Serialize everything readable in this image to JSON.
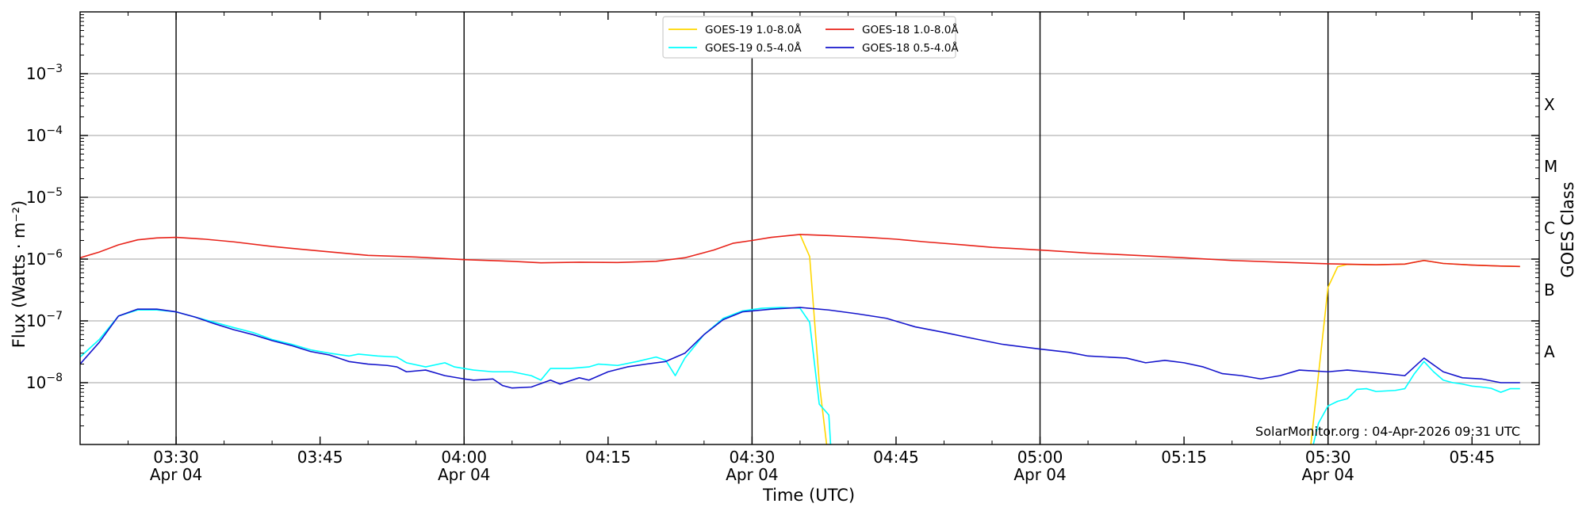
{
  "chart_data": {
    "type": "line",
    "title": "",
    "xlabel": "Time (UTC)",
    "ylabel": "Flux (Watts · m⁻²)",
    "y2label": "GOES Class",
    "yscale": "log",
    "xlim": [
      "03:20",
      "05:52"
    ],
    "ylim": [
      1e-09,
      0.01
    ],
    "grid": "horizontal",
    "legend_position": "top-center",
    "x_ticks": [
      {
        "time": "03:30",
        "label": "03:30",
        "sublabel": "Apr 04",
        "vline": true
      },
      {
        "time": "03:45",
        "label": "03:45",
        "sublabel": "",
        "vline": false
      },
      {
        "time": "04:00",
        "label": "04:00",
        "sublabel": "Apr 04",
        "vline": true
      },
      {
        "time": "04:15",
        "label": "04:15",
        "sublabel": "",
        "vline": false
      },
      {
        "time": "04:30",
        "label": "04:30",
        "sublabel": "Apr 04",
        "vline": true
      },
      {
        "time": "04:45",
        "label": "04:45",
        "sublabel": "",
        "vline": false
      },
      {
        "time": "05:00",
        "label": "05:00",
        "sublabel": "Apr 04",
        "vline": true
      },
      {
        "time": "05:15",
        "label": "05:15",
        "sublabel": "",
        "vline": false
      },
      {
        "time": "05:30",
        "label": "05:30",
        "sublabel": "Apr 04",
        "vline": true
      },
      {
        "time": "05:45",
        "label": "05:45",
        "sublabel": "",
        "vline": false
      }
    ],
    "y_ticks": [
      {
        "exp": -8,
        "label": "10"
      },
      {
        "exp": -7,
        "label": "10"
      },
      {
        "exp": -6,
        "label": "10"
      },
      {
        "exp": -5,
        "label": "10"
      },
      {
        "exp": -4,
        "label": "10"
      },
      {
        "exp": -3,
        "label": "10"
      }
    ],
    "goes_classes": [
      {
        "label": "A",
        "exp": -7.5
      },
      {
        "label": "B",
        "exp": -6.5
      },
      {
        "label": "C",
        "exp": -5.5
      },
      {
        "label": "M",
        "exp": -4.5
      },
      {
        "label": "X",
        "exp": -3.5
      }
    ],
    "series": [
      {
        "name": "GOES-19 1.0-8.0Å",
        "color": "#FFD700",
        "points": [
          [
            "04:35",
            2.5e-06
          ],
          [
            "04:36",
            1.1e-06
          ],
          [
            "04:37",
            1e-08
          ],
          [
            "04:38",
            5e-10
          ],
          [
            "05:28",
            5e-10
          ],
          [
            "05:30",
            3.5e-07
          ],
          [
            "05:31",
            7.5e-07
          ],
          [
            "05:32",
            8.2e-07
          ],
          [
            "05:35",
            8.1e-07
          ],
          [
            "05:38",
            8.3e-07
          ],
          [
            "05:40",
            9.5e-07
          ],
          [
            "05:42",
            8.5e-07
          ],
          [
            "05:45",
            8e-07
          ],
          [
            "05:48",
            7.7e-07
          ],
          [
            "05:50",
            7.6e-07
          ]
        ]
      },
      {
        "name": "GOES-19 0.5-4.0Å",
        "color": "#00FFFF",
        "points": [
          [
            "03:20",
            2.6e-08
          ],
          [
            "03:22",
            5e-08
          ],
          [
            "03:24",
            1.2e-07
          ],
          [
            "03:26",
            1.5e-07
          ],
          [
            "03:28",
            1.5e-07
          ],
          [
            "03:30",
            1.4e-07
          ],
          [
            "03:32",
            1.15e-07
          ],
          [
            "03:34",
            9.5e-08
          ],
          [
            "03:36",
            7.8e-08
          ],
          [
            "03:38",
            6.5e-08
          ],
          [
            "03:40",
            5e-08
          ],
          [
            "03:42",
            4.2e-08
          ],
          [
            "03:44",
            3.4e-08
          ],
          [
            "03:46",
            3e-08
          ],
          [
            "03:48",
            2.7e-08
          ],
          [
            "03:49",
            2.9e-08
          ],
          [
            "03:51",
            2.7e-08
          ],
          [
            "03:53",
            2.6e-08
          ],
          [
            "03:54",
            2.1e-08
          ],
          [
            "03:56",
            1.8e-08
          ],
          [
            "03:58",
            2.1e-08
          ],
          [
            "03:59",
            1.8e-08
          ],
          [
            "04:01",
            1.6e-08
          ],
          [
            "04:03",
            1.5e-08
          ],
          [
            "04:05",
            1.5e-08
          ],
          [
            "04:07",
            1.3e-08
          ],
          [
            "04:08",
            1.1e-08
          ],
          [
            "04:09",
            1.7e-08
          ],
          [
            "04:11",
            1.7e-08
          ],
          [
            "04:13",
            1.8e-08
          ],
          [
            "04:14",
            2e-08
          ],
          [
            "04:16",
            1.9e-08
          ],
          [
            "04:18",
            2.2e-08
          ],
          [
            "04:20",
            2.6e-08
          ],
          [
            "04:21",
            2.3e-08
          ],
          [
            "04:22",
            1.3e-08
          ],
          [
            "04:23",
            2.5e-08
          ],
          [
            "04:25",
            6e-08
          ],
          [
            "04:27",
            1.1e-07
          ],
          [
            "04:29",
            1.45e-07
          ],
          [
            "04:31",
            1.6e-07
          ],
          [
            "04:33",
            1.65e-07
          ],
          [
            "04:35",
            1.6e-07
          ],
          [
            "04:36",
            9.5e-08
          ],
          [
            "04:37",
            4.5e-09
          ],
          [
            "04:38",
            3e-09
          ],
          [
            "04:38.3",
            5e-10
          ],
          [
            "05:28",
            5e-10
          ],
          [
            "05:29",
            2.2e-09
          ],
          [
            "05:30",
            4.2e-09
          ],
          [
            "05:31",
            5e-09
          ],
          [
            "05:32",
            5.5e-09
          ],
          [
            "05:33",
            7.8e-09
          ],
          [
            "05:34",
            8e-09
          ],
          [
            "05:35",
            7.2e-09
          ],
          [
            "05:37",
            7.5e-09
          ],
          [
            "05:38",
            8e-09
          ],
          [
            "05:39",
            1.4e-08
          ],
          [
            "05:40",
            2.2e-08
          ],
          [
            "05:41",
            1.5e-08
          ],
          [
            "05:42",
            1.1e-08
          ],
          [
            "05:43",
            1e-08
          ],
          [
            "05:44",
            9.5e-09
          ],
          [
            "05:45",
            8.8e-09
          ],
          [
            "05:46",
            8.5e-09
          ],
          [
            "05:47",
            8.1e-09
          ],
          [
            "05:48",
            7e-09
          ],
          [
            "05:49",
            8e-09
          ],
          [
            "05:50",
            8e-09
          ]
        ]
      },
      {
        "name": "GOES-18 1.0-8.0Å",
        "color": "#E8231A",
        "points": [
          [
            "03:20",
            1.05e-06
          ],
          [
            "03:22",
            1.3e-06
          ],
          [
            "03:24",
            1.7e-06
          ],
          [
            "03:26",
            2.05e-06
          ],
          [
            "03:28",
            2.2e-06
          ],
          [
            "03:30",
            2.25e-06
          ],
          [
            "03:33",
            2.1e-06
          ],
          [
            "03:36",
            1.9e-06
          ],
          [
            "03:40",
            1.6e-06
          ],
          [
            "03:45",
            1.35e-06
          ],
          [
            "03:50",
            1.15e-06
          ],
          [
            "03:55",
            1.08e-06
          ],
          [
            "04:00",
            9.8e-07
          ],
          [
            "04:05",
            9.2e-07
          ],
          [
            "04:08",
            8.7e-07
          ],
          [
            "04:12",
            8.9e-07
          ],
          [
            "04:16",
            8.8e-07
          ],
          [
            "04:20",
            9.2e-07
          ],
          [
            "04:23",
            1.05e-06
          ],
          [
            "04:26",
            1.4e-06
          ],
          [
            "04:28",
            1.8e-06
          ],
          [
            "04:30",
            2e-06
          ],
          [
            "04:32",
            2.25e-06
          ],
          [
            "04:35",
            2.5e-06
          ],
          [
            "04:38",
            2.4e-06
          ],
          [
            "04:42",
            2.25e-06
          ],
          [
            "04:45",
            2.1e-06
          ],
          [
            "04:48",
            1.9e-06
          ],
          [
            "04:52",
            1.7e-06
          ],
          [
            "04:55",
            1.55e-06
          ],
          [
            "05:00",
            1.4e-06
          ],
          [
            "05:05",
            1.25e-06
          ],
          [
            "05:10",
            1.15e-06
          ],
          [
            "05:15",
            1.05e-06
          ],
          [
            "05:20",
            9.5e-07
          ],
          [
            "05:25",
            8.9e-07
          ],
          [
            "05:30",
            8.4e-07
          ],
          [
            "05:35",
            8.1e-07
          ],
          [
            "05:38",
            8.3e-07
          ],
          [
            "05:40",
            9.5e-07
          ],
          [
            "05:42",
            8.5e-07
          ],
          [
            "05:45",
            8e-07
          ],
          [
            "05:48",
            7.7e-07
          ],
          [
            "05:50",
            7.6e-07
          ]
        ]
      },
      {
        "name": "GOES-18 0.5-4.0Å",
        "color": "#1515CC",
        "points": [
          [
            "03:20",
            2e-08
          ],
          [
            "03:22",
            4.5e-08
          ],
          [
            "03:24",
            1.2e-07
          ],
          [
            "03:26",
            1.55e-07
          ],
          [
            "03:28",
            1.55e-07
          ],
          [
            "03:30",
            1.4e-07
          ],
          [
            "03:32",
            1.15e-07
          ],
          [
            "03:34",
            9e-08
          ],
          [
            "03:36",
            7.2e-08
          ],
          [
            "03:38",
            6e-08
          ],
          [
            "03:40",
            4.8e-08
          ],
          [
            "03:42",
            4e-08
          ],
          [
            "03:44",
            3.2e-08
          ],
          [
            "03:46",
            2.8e-08
          ],
          [
            "03:48",
            2.2e-08
          ],
          [
            "03:50",
            2e-08
          ],
          [
            "03:52",
            1.9e-08
          ],
          [
            "03:53",
            1.8e-08
          ],
          [
            "03:54",
            1.5e-08
          ],
          [
            "03:56",
            1.6e-08
          ],
          [
            "03:58",
            1.3e-08
          ],
          [
            "04:00",
            1.15e-08
          ],
          [
            "04:01",
            1.1e-08
          ],
          [
            "04:03",
            1.15e-08
          ],
          [
            "04:04",
            9e-09
          ],
          [
            "04:05",
            8.2e-09
          ],
          [
            "04:07",
            8.5e-09
          ],
          [
            "04:09",
            1.1e-08
          ],
          [
            "04:10",
            9.5e-09
          ],
          [
            "04:12",
            1.2e-08
          ],
          [
            "04:13",
            1.1e-08
          ],
          [
            "04:15",
            1.5e-08
          ],
          [
            "04:17",
            1.8e-08
          ],
          [
            "04:19",
            2e-08
          ],
          [
            "04:21",
            2.2e-08
          ],
          [
            "04:23",
            3e-08
          ],
          [
            "04:25",
            6e-08
          ],
          [
            "04:27",
            1.05e-07
          ],
          [
            "04:29",
            1.4e-07
          ],
          [
            "04:32",
            1.55e-07
          ],
          [
            "04:35",
            1.65e-07
          ],
          [
            "04:38",
            1.5e-07
          ],
          [
            "04:41",
            1.3e-07
          ],
          [
            "04:44",
            1.1e-07
          ],
          [
            "04:47",
            8e-08
          ],
          [
            "04:50",
            6.5e-08
          ],
          [
            "04:53",
            5.2e-08
          ],
          [
            "04:56",
            4.2e-08
          ],
          [
            "05:00",
            3.5e-08
          ],
          [
            "05:03",
            3.1e-08
          ],
          [
            "05:05",
            2.7e-08
          ],
          [
            "05:07",
            2.6e-08
          ],
          [
            "05:09",
            2.5e-08
          ],
          [
            "05:11",
            2.1e-08
          ],
          [
            "05:13",
            2.3e-08
          ],
          [
            "05:15",
            2.1e-08
          ],
          [
            "05:17",
            1.8e-08
          ],
          [
            "05:19",
            1.4e-08
          ],
          [
            "05:21",
            1.3e-08
          ],
          [
            "05:23",
            1.15e-08
          ],
          [
            "05:25",
            1.3e-08
          ],
          [
            "05:27",
            1.6e-08
          ],
          [
            "05:30",
            1.5e-08
          ],
          [
            "05:32",
            1.6e-08
          ],
          [
            "05:34",
            1.5e-08
          ],
          [
            "05:36",
            1.4e-08
          ],
          [
            "05:38",
            1.3e-08
          ],
          [
            "05:40",
            2.5e-08
          ],
          [
            "05:42",
            1.5e-08
          ],
          [
            "05:44",
            1.2e-08
          ],
          [
            "05:46",
            1.15e-08
          ],
          [
            "05:48",
            1e-08
          ],
          [
            "05:50",
            1e-08
          ]
        ]
      }
    ],
    "legend_order": [
      0,
      1,
      2,
      3
    ],
    "annotation": "SolarMonitor.org : 04-Apr-2026 09:31 UTC"
  }
}
